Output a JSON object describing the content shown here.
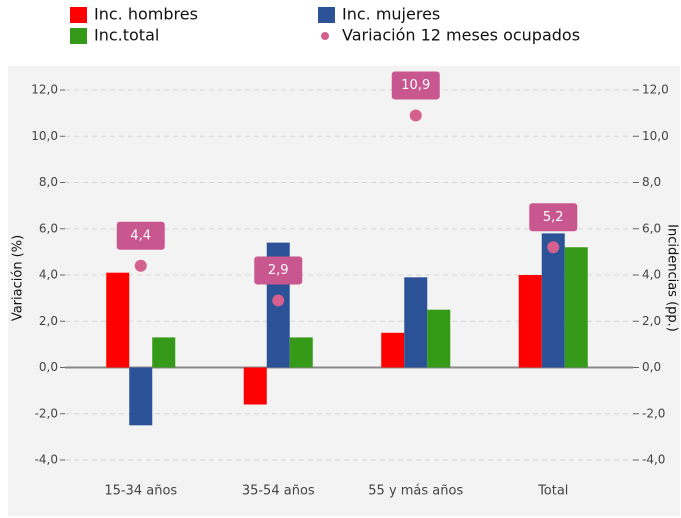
{
  "chart_data": {
    "type": "bar",
    "categories": [
      "15-34 años",
      "35-54 años",
      "55 y más años",
      "Total"
    ],
    "series": [
      {
        "name": "Inc. hombres",
        "color": "#ff0000",
        "values": [
          4.1,
          -1.6,
          1.5,
          4.0
        ],
        "axis": "y2"
      },
      {
        "name": "Inc. mujeres",
        "color": "#2b5297",
        "values": [
          -2.5,
          5.4,
          3.9,
          5.8
        ],
        "axis": "y2"
      },
      {
        "name": "Inc.total",
        "color": "#349a17",
        "values": [
          1.3,
          1.3,
          2.5,
          5.2
        ],
        "axis": "y2"
      },
      {
        "name": "Variación 12 meses ocupados",
        "type": "point",
        "color": "#d4608d",
        "values": [
          4.4,
          2.9,
          10.9,
          5.2
        ],
        "value_labels": [
          "4,4",
          "2,9",
          "10,9",
          "5,2"
        ]
      }
    ],
    "ylabel": "Variación (%)",
    "y2label": "Incidencias (pp.)",
    "ylim": [
      -4.0,
      12.0
    ],
    "yticks": [
      {
        "value": -4,
        "label": "-4,0"
      },
      {
        "value": -2,
        "label": "-2,0"
      },
      {
        "value": 0,
        "label": "0,0"
      },
      {
        "value": 2,
        "label": "2,0"
      },
      {
        "value": 4,
        "label": "4,0"
      },
      {
        "value": 6,
        "label": "6,0"
      },
      {
        "value": 8,
        "label": "8,0"
      },
      {
        "value": 10,
        "label": "10,0"
      },
      {
        "value": 12,
        "label": "12,0"
      }
    ],
    "y2lim": [
      -4.0,
      12.0
    ],
    "y2ticks": [
      {
        "value": -4,
        "label": "-4,0"
      },
      {
        "value": -2,
        "label": "-2,0"
      },
      {
        "value": 0,
        "label": "0,0"
      },
      {
        "value": 2,
        "label": "2,0"
      },
      {
        "value": 4,
        "label": "4,0"
      },
      {
        "value": 6,
        "label": "6,0"
      },
      {
        "value": 8,
        "label": "8,0"
      },
      {
        "value": 10,
        "label": "10,0"
      },
      {
        "value": 12,
        "label": "12,0"
      }
    ],
    "grid": true,
    "legend": "top"
  }
}
